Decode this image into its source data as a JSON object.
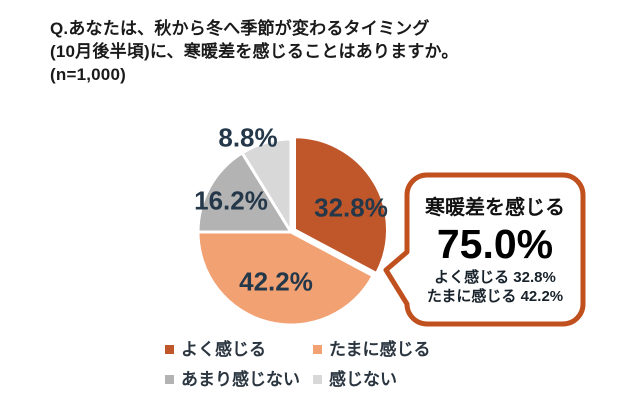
{
  "title": {
    "line1": "Q.あなたは、秋から冬へ季節が変わるタイミング",
    "line2": "(10月後半頃)に、寒暖差を感じることはありますか。",
    "line3": "(n=1,000)"
  },
  "chart_data": {
    "type": "pie",
    "title": "Q.あなたは、秋から冬へ季節が変わるタイミング(10月後半頃)に、寒暖差を感じることはありますか。",
    "sample_size": "(n=1,000)",
    "categories": [
      "よく感じる",
      "たまに感じる",
      "あまり感じない",
      "感じない"
    ],
    "values": [
      32.8,
      42.2,
      16.2,
      8.8
    ],
    "labels": [
      "32.8%",
      "42.2%",
      "16.2%",
      "8.8%"
    ],
    "colors": [
      "#bf572b",
      "#f2a173",
      "#b3b3b4",
      "#d8d8d8"
    ],
    "start_angle_deg": 0,
    "direction": "clockwise",
    "exploded_index": 0,
    "slice_gap_color": "#ffffff",
    "legend_position": "bottom"
  },
  "callout": {
    "heading": "寒暖差を感じる",
    "value": "75.0%",
    "details": [
      "よく感じる 32.8%",
      "たまに感じる 42.2%"
    ],
    "border_color": "#c0511f"
  }
}
